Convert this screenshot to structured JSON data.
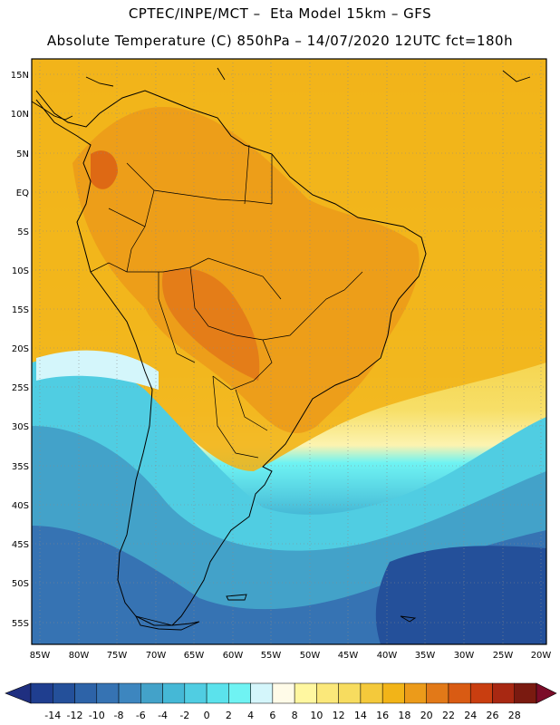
{
  "header": {
    "line1": "CPTEC/INPE/MCT –  Eta Model 15km – GFS",
    "line2": "Absolute Temperature (C) 850hPa – 14/07/2020 12UTC fct=180h"
  },
  "map": {
    "latitude_labels": [
      "15N",
      "10N",
      "5N",
      "EQ",
      "5S",
      "10S",
      "15S",
      "20S",
      "25S",
      "30S",
      "35S",
      "40S",
      "45S",
      "50S",
      "55S"
    ],
    "longitude_labels": [
      "85W",
      "80W",
      "75W",
      "70W",
      "65W",
      "60W",
      "55W",
      "50W",
      "45W",
      "40W",
      "35W",
      "30W",
      "25W",
      "20W"
    ]
  },
  "colorbar": {
    "levels": [
      "-14",
      "-12",
      "-10",
      "-8",
      "-6",
      "-4",
      "-2",
      "0",
      "2",
      "4",
      "6",
      "8",
      "10",
      "12",
      "14",
      "16",
      "18",
      "20",
      "22",
      "24",
      "26",
      "28"
    ],
    "colors": [
      "#1f3e8f",
      "#24509a",
      "#2d63a8",
      "#3673b3",
      "#3d86bf",
      "#43a2c9",
      "#45b8d6",
      "#50cde2",
      "#5be2ec",
      "#6ff3f3",
      "#d4f6fb",
      "#fffbe8",
      "#fff7a0",
      "#fbe87a",
      "#f7dc5f",
      "#f4c93b",
      "#f2b418",
      "#ec9b1a",
      "#e27918",
      "#d95b13",
      "#c93e10",
      "#a82812",
      "#7a1a10"
    ],
    "low_arrow_color": "#1f2f80",
    "high_arrow_color": "#7b0c28"
  }
}
